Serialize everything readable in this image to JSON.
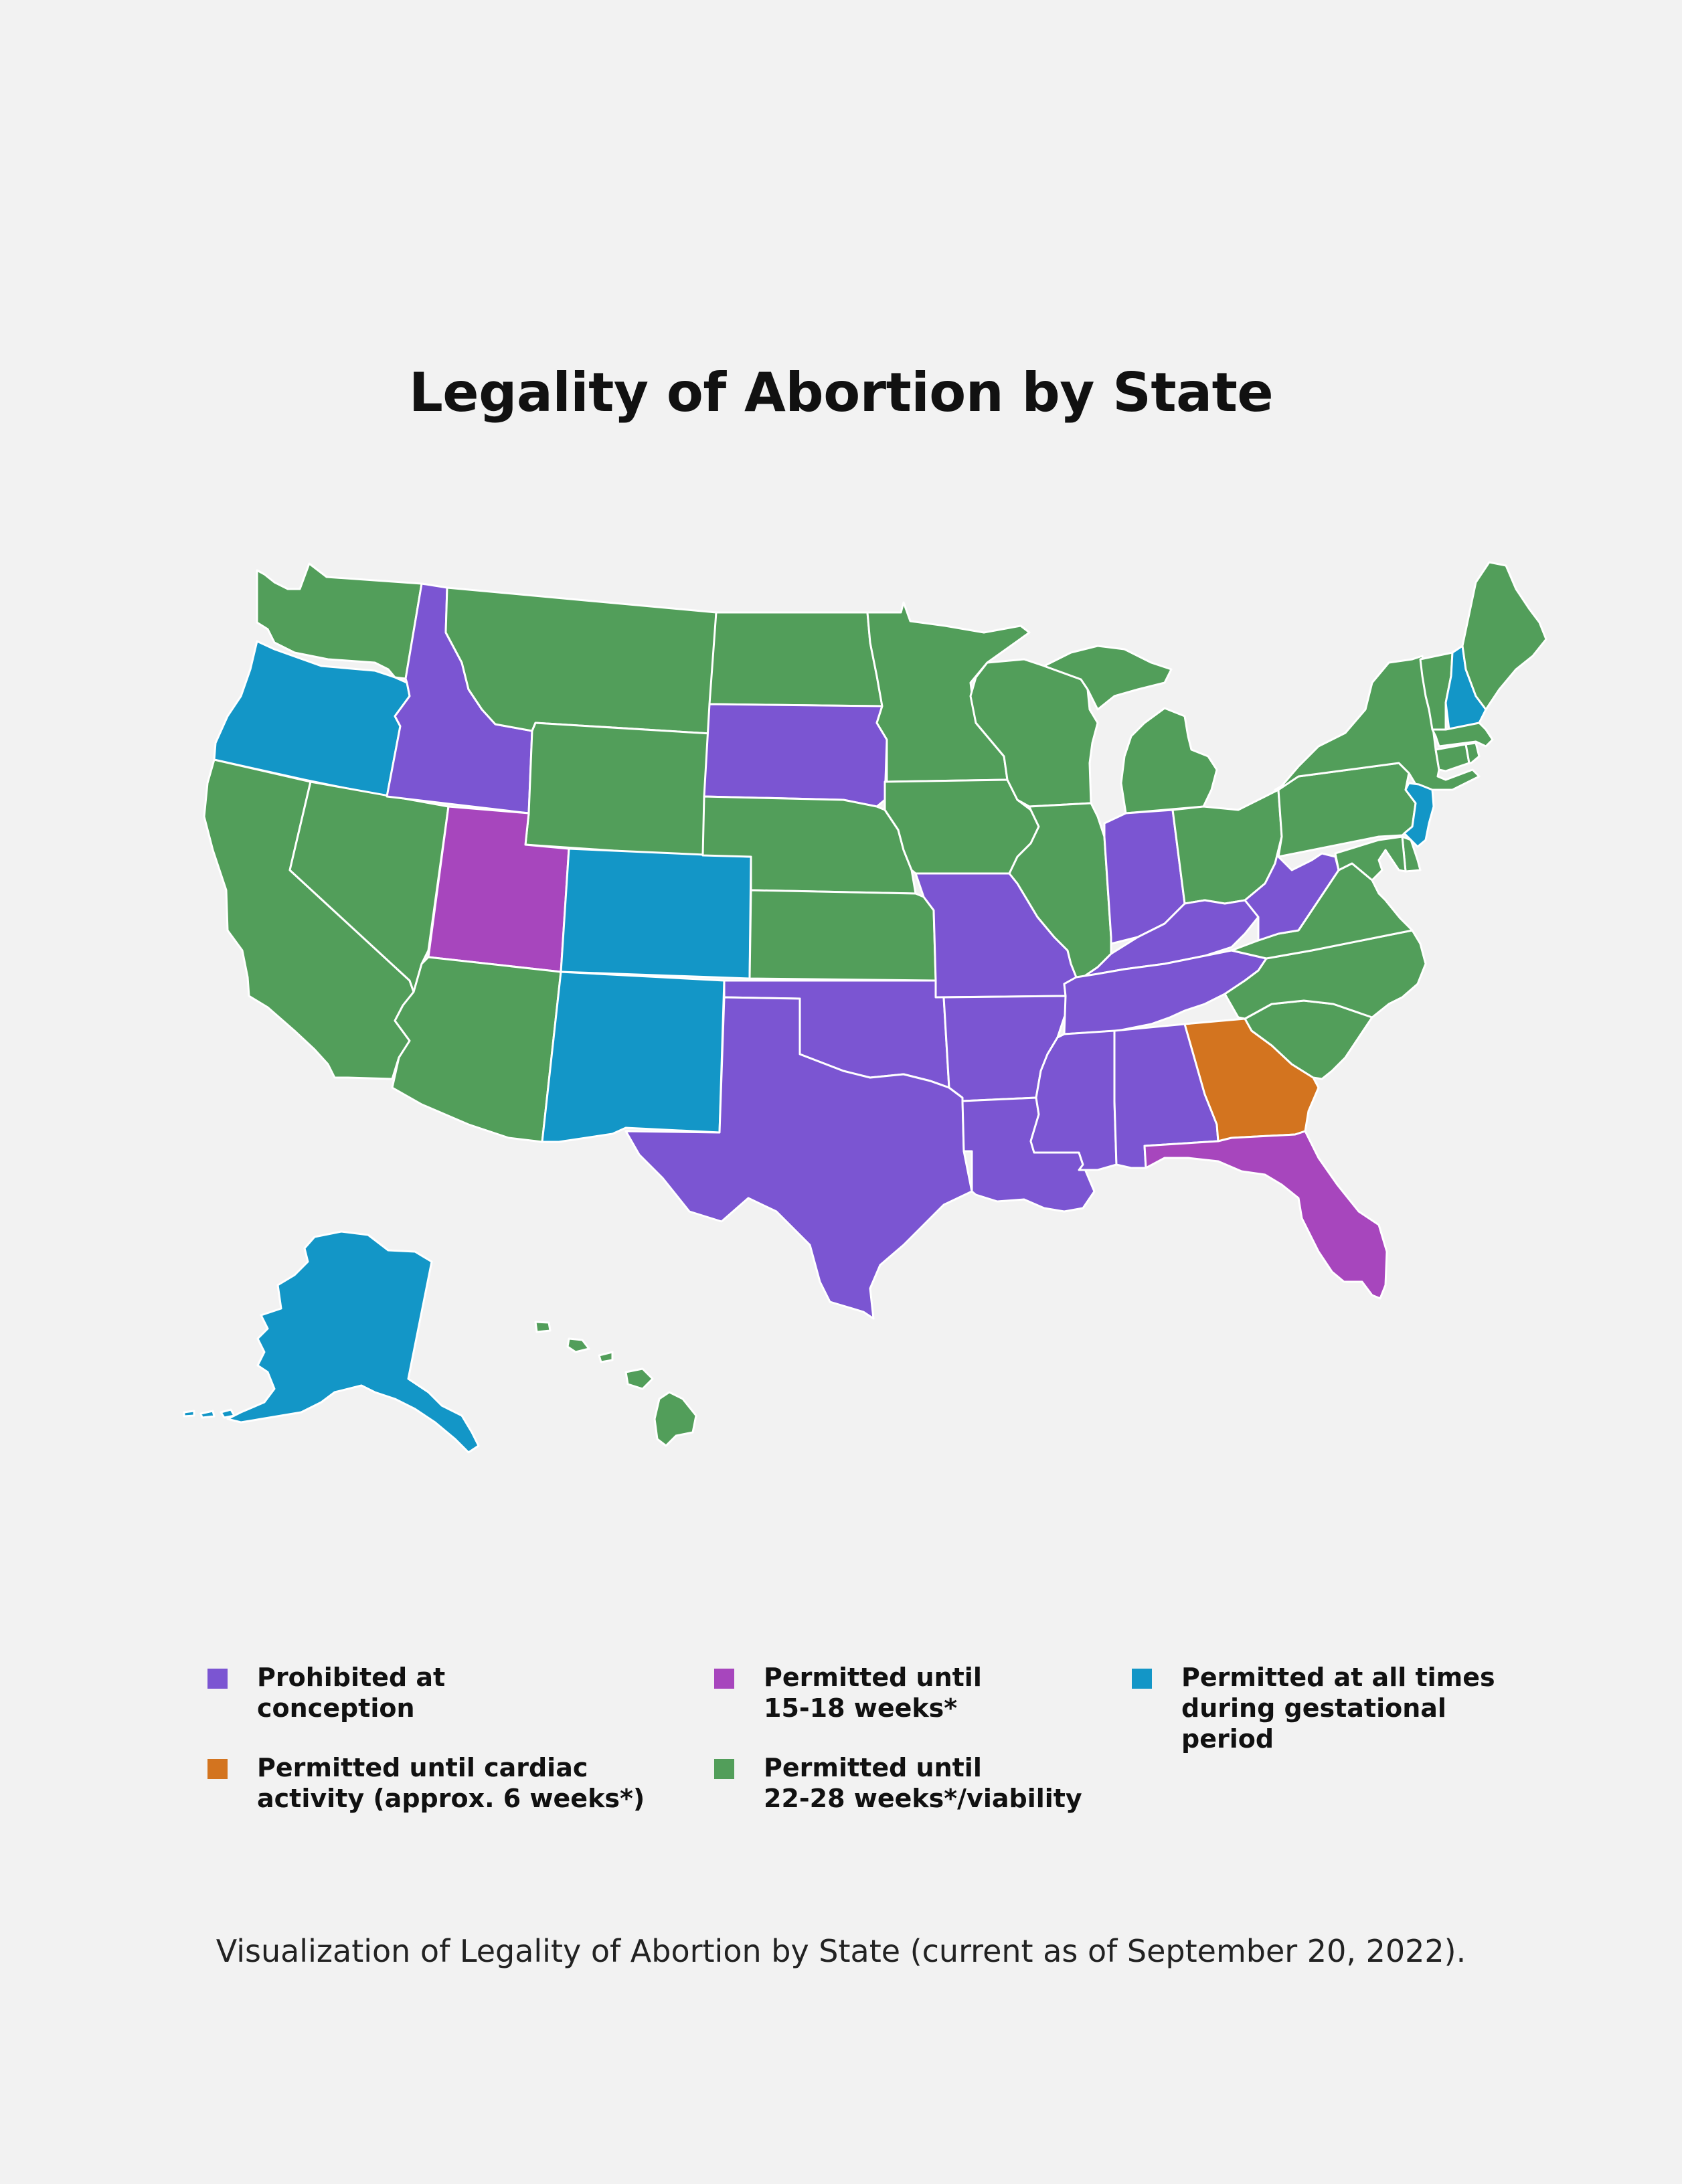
{
  "title": "Legality of Abortion by State",
  "caption": "Visualization of Legality of Abortion by State (current as of September 20, 2022).",
  "colors": {
    "prohibited": "#7b55d2",
    "cardiac": "#d3741f",
    "weeks_15_18": "#a746bd",
    "viability": "#529e5a",
    "all_times": "#1396c7",
    "border": "#ffffff",
    "background": "#f2f2f2"
  },
  "legend": [
    {
      "key": "prohibited",
      "label": "Prohibited at\nconception",
      "color": "#7b55d2"
    },
    {
      "key": "weeks_15_18",
      "label": "Permitted until\n15-18 weeks*",
      "color": "#a746bd"
    },
    {
      "key": "all_times",
      "label": "Permitted at all times\nduring gestational\nperiod",
      "color": "#1396c7"
    },
    {
      "key": "cardiac",
      "label": "Permitted until cardiac\nactivity (approx. 6 weeks*)",
      "color": "#d3741f"
    },
    {
      "key": "viability",
      "label": "Permitted until\n22-28 weeks*/viability",
      "color": "#529e5a"
    }
  ],
  "states": {
    "WA": "viability",
    "OR": "all_times",
    "CA": "viability",
    "NV": "viability",
    "ID": "prohibited",
    "MT": "viability",
    "WY": "viability",
    "UT": "weeks_15_18",
    "AZ": "viability",
    "CO": "all_times",
    "NM": "all_times",
    "ND": "viability",
    "SD": "prohibited",
    "NE": "viability",
    "KS": "viability",
    "OK": "prohibited",
    "TX": "prohibited",
    "MN": "viability",
    "IA": "viability",
    "MO": "prohibited",
    "AR": "prohibited",
    "LA": "prohibited",
    "WI": "viability",
    "IL": "viability",
    "MI": "viability",
    "IN": "prohibited",
    "OH": "viability",
    "KY": "prohibited",
    "TN": "prohibited",
    "MS": "prohibited",
    "AL": "prohibited",
    "GA": "cardiac",
    "FL": "weeks_15_18",
    "SC": "viability",
    "NC": "viability",
    "VA": "viability",
    "WV": "prohibited",
    "PA": "viability",
    "NY": "viability",
    "VT": "viability",
    "NH": "all_times",
    "ME": "viability",
    "MA": "viability",
    "CT": "viability",
    "RI": "viability",
    "NJ": "all_times",
    "DE": "viability",
    "MD": "viability",
    "AK": "all_times",
    "HI": "viability"
  }
}
